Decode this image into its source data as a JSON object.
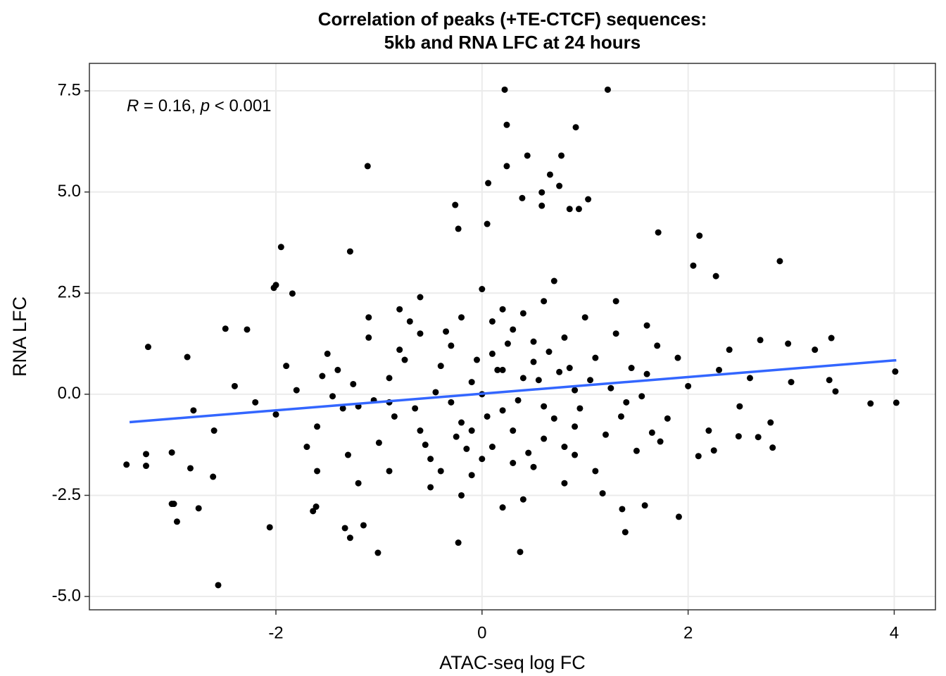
{
  "chart_data": {
    "type": "scatter",
    "title": [
      "Correlation of peaks (+TE-CTCF) sequences:",
      "5kb and RNA LFC at 24 hours"
    ],
    "x_label": "ATAC-seq log FC",
    "y_label": "RNA LFC",
    "annotation": {
      "parts": [
        "R",
        " = 0.16, ",
        "p",
        " < 0.001"
      ],
      "italic": [
        true,
        false,
        true,
        false
      ]
    },
    "xlim": [
      -3.81,
      4.4
    ],
    "ylim": [
      -5.33,
      8.18
    ],
    "xticks": [
      -2,
      0,
      2,
      4
    ],
    "yticks": [
      7.5,
      {
        "value": 5,
        "label": "5.0"
      },
      2.5,
      {
        "value": 0,
        "label": "0.0"
      },
      -2.5,
      {
        "value": -5,
        "label": "-5.0"
      }
    ],
    "grid": true,
    "series": [
      {
        "type": "scatter",
        "color": "#000000",
        "x": [
          0.22,
          1.22,
          0.24,
          0.91,
          -1.11,
          0.44,
          0.77,
          0.24,
          0.06,
          0.66,
          0.39,
          0.58,
          0.75,
          1.03,
          -0.26,
          0.58,
          0.94,
          0.85,
          1.71,
          2.11,
          -1.95,
          2.89,
          -1.28,
          -0.23,
          0.05,
          -2.02,
          -2.0,
          -1.84,
          2.27,
          2.05,
          -3.24,
          -2.86,
          -2.49,
          -2.28,
          3.39,
          3.23,
          2.97,
          2.7,
          4.01,
          4.02,
          3.77,
          3.43,
          3.37,
          -3.45,
          -3.26,
          -3.26,
          -3.01,
          -2.83,
          -3.01,
          -2.99,
          -2.96,
          -2.75,
          -2.56,
          -2.61,
          -2.06,
          -1.33,
          -1.28,
          -1.15,
          -1.01,
          -0.23,
          0.37,
          1.39,
          1.91,
          2.82,
          2.68,
          2.49,
          2.25,
          2.1,
          1.73,
          1.58,
          1.36,
          1.17,
          -1.61,
          -1.64,
          -0.1,
          0.2,
          0.5,
          -0.6,
          0.9,
          -0.3,
          0.1,
          0.7,
          -0.9,
          1.1,
          -1.2,
          0.3,
          -0.5,
          1.4,
          -0.8,
          0.0,
          0.4,
          -0.2,
          0.6,
          -1.4,
          1.6,
          -0.4,
          0.8,
          -1.0,
          0.2,
          -0.1,
          1.2,
          -1.6,
          0.5,
          -0.7,
          1.8,
          0.1,
          -0.3,
          0.9,
          -1.1,
          0.6,
          -0.5,
          1.3,
          -1.3,
          0.3,
          2.0,
          -1.8,
          0.0,
          -0.2,
          1.0,
          -0.9,
          1.5,
          -1.5,
          0.4,
          -0.6,
          2.2,
          -2.0,
          0.7,
          0.2,
          1.7,
          -1.7,
          1.9,
          -1.9,
          0.8,
          -0.8,
          0.15,
          0.35,
          -0.45,
          0.55,
          -0.25,
          0.75,
          -0.65,
          0.95,
          -0.85,
          1.05,
          0.05,
          -0.05,
          0.25,
          -0.35,
          0.45,
          -0.15,
          0.65,
          -0.55,
          0.85,
          -0.75,
          1.25,
          -1.05,
          1.35,
          -1.25,
          1.45,
          -1.35,
          1.55,
          -1.45,
          1.65,
          -1.55,
          2.3,
          2.5,
          2.6,
          -2.2,
          -2.4,
          2.8,
          -2.6,
          3.0,
          -2.8,
          2.4,
          0.1,
          0.3,
          -0.2,
          0.5,
          -0.4,
          0.6,
          -0.1,
          0.2,
          0.9,
          -0.9,
          1.1,
          -1.1,
          1.3,
          -1.2,
          0.0,
          0.4,
          0.8,
          -0.6,
          1.6,
          -1.6
        ],
        "values": [
          7.53,
          7.53,
          6.66,
          6.6,
          5.64,
          5.9,
          5.9,
          5.64,
          5.22,
          5.43,
          4.85,
          4.99,
          5.15,
          4.82,
          4.68,
          4.66,
          4.58,
          4.58,
          4.0,
          3.92,
          3.64,
          3.29,
          3.53,
          4.09,
          4.21,
          2.63,
          2.7,
          2.49,
          2.92,
          3.18,
          1.17,
          0.92,
          1.62,
          1.6,
          1.39,
          1.1,
          1.25,
          1.34,
          0.56,
          -0.21,
          -0.23,
          0.07,
          0.35,
          -1.74,
          -1.48,
          -1.77,
          -1.44,
          -1.83,
          -2.71,
          -2.71,
          -3.15,
          -2.82,
          -4.72,
          -2.04,
          -3.29,
          -3.31,
          -3.55,
          -3.24,
          -3.92,
          -3.67,
          -3.9,
          -3.41,
          -3.03,
          -1.32,
          -1.06,
          -1.04,
          -1.39,
          -1.53,
          -1.17,
          -2.75,
          -2.84,
          -2.45,
          -2.78,
          -2.89,
          0.3,
          -0.4,
          0.8,
          -0.9,
          0.1,
          1.2,
          -1.3,
          -0.6,
          0.4,
          0.9,
          -0.3,
          1.6,
          -1.6,
          -0.2,
          1.1,
          0.0,
          0.4,
          -0.7,
          -1.1,
          0.6,
          0.5,
          0.7,
          1.4,
          -1.2,
          2.1,
          -2.0,
          -1.0,
          -0.8,
          -1.8,
          1.8,
          -0.6,
          1.0,
          -0.2,
          -1.5,
          1.4,
          2.3,
          -2.3,
          1.5,
          -1.5,
          -0.9,
          0.2,
          0.1,
          2.6,
          -2.5,
          1.9,
          -1.9,
          -1.4,
          1.0,
          -2.6,
          2.4,
          -0.9,
          -0.5,
          2.8,
          -2.8,
          1.2,
          -1.3,
          0.9,
          0.7,
          -2.2,
          2.1,
          0.6,
          -0.15,
          0.05,
          0.35,
          -1.05,
          0.55,
          -0.35,
          -0.35,
          -0.55,
          0.35,
          -0.55,
          0.85,
          1.25,
          1.55,
          -1.45,
          -1.35,
          1.05,
          -1.25,
          0.65,
          0.85,
          0.15,
          -0.15,
          -0.55,
          0.25,
          0.65,
          -0.35,
          -0.05,
          -0.05,
          -0.95,
          0.45,
          0.6,
          -0.3,
          0.4,
          -0.2,
          0.2,
          -0.7,
          -0.9,
          0.3,
          -0.4,
          1.1,
          1.8,
          -1.7,
          1.9,
          1.3,
          -1.9,
          -0.3,
          -0.9,
          0.6,
          -0.8,
          -0.2,
          -1.9,
          1.9,
          2.3,
          -2.2,
          -1.6,
          2.0,
          -1.3,
          1.5,
          1.7,
          -1.9
        ]
      },
      {
        "type": "line",
        "color": "#3366FF",
        "x": [
          -3.42,
          4.02
        ],
        "values": [
          -0.69,
          0.84
        ]
      }
    ]
  }
}
